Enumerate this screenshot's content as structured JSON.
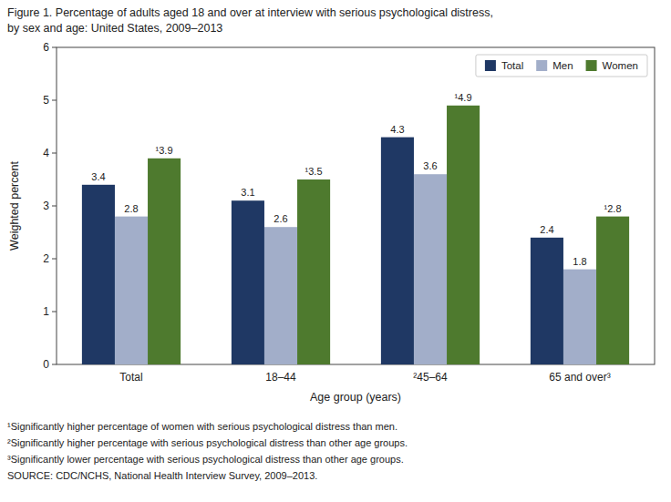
{
  "chart_data": {
    "type": "bar",
    "title": "Figure 1. Percentage of adults aged 18 and over at interview with serious psychological distress,",
    "subtitle": "by sex and age: United States, 2009–2013",
    "categories": [
      "Total",
      "18–44",
      "²45–64",
      "65 and over³"
    ],
    "series": [
      {
        "name": "Total",
        "color": "#1f3864",
        "values": [
          3.4,
          3.1,
          4.3,
          2.4
        ]
      },
      {
        "name": "Men",
        "color": "#a2aec9",
        "values": [
          2.8,
          2.6,
          3.6,
          1.8
        ]
      },
      {
        "name": "Women",
        "color": "#4e7a2e",
        "values": [
          3.9,
          3.5,
          4.9,
          2.8
        ],
        "value_labels": [
          "¹3.9",
          "¹3.5",
          "¹4.9",
          "¹2.8"
        ]
      }
    ],
    "xlabel": "Age group (years)",
    "ylabel": "Weighted percent",
    "ylim": [
      0,
      6
    ],
    "yticks": [
      0,
      1,
      2,
      3,
      4,
      5,
      6
    ],
    "grid": false,
    "legend": "upper right",
    "data_labels": true,
    "annotations": [
      "¹Significantly higher percentage of women with serious psychological distress than men.",
      "²Significantly higher percentage with serious psychological distress than other age groups.",
      "³Significantly lower percentage with serious psychological distress than other age groups.",
      "SOURCE: CDC/NCHS, National Health Interview Survey, 2009–2013."
    ]
  }
}
